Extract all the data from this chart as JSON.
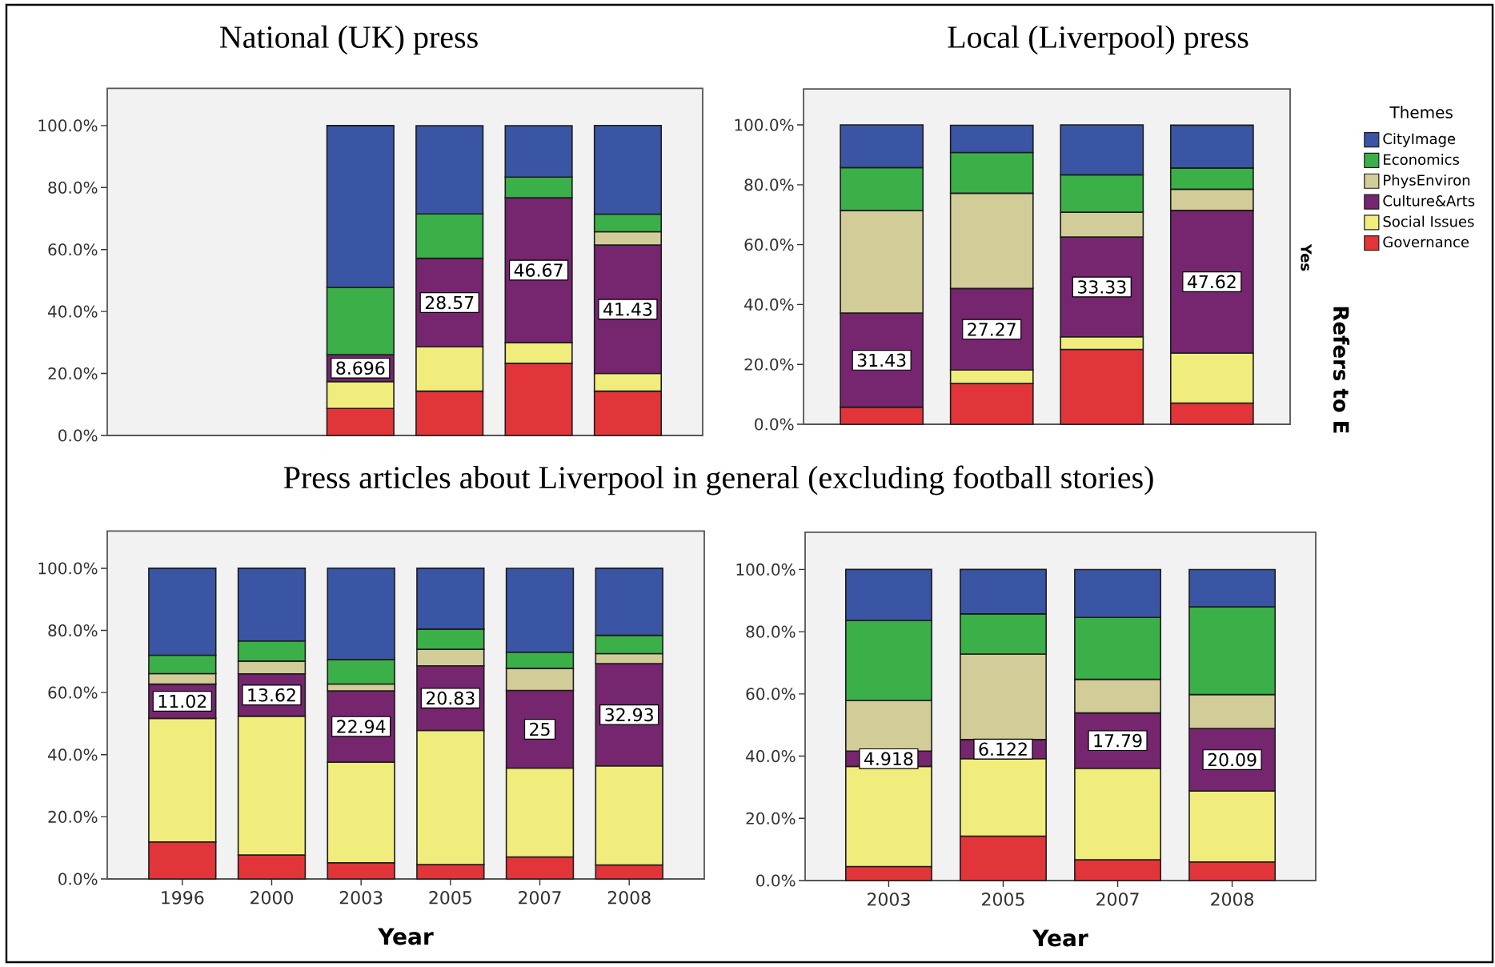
{
  "chart_data": [
    {
      "type": "bar",
      "stacked": true,
      "title": "National (UK) press",
      "categories": [
        "1996",
        "2000",
        "2003",
        "2005",
        "2007",
        "2008"
      ],
      "tick_labels": "y",
      "ylim": [
        0,
        112
      ],
      "yticks": [
        {
          "value": 0,
          "label": "0.0%"
        },
        {
          "value": 20,
          "label": "20.0%"
        },
        {
          "value": 40,
          "label": "40.0%"
        },
        {
          "value": 60,
          "label": "60.0%"
        },
        {
          "value": 80,
          "label": "80.0%"
        },
        {
          "value": 100,
          "label": "100.0%"
        }
      ],
      "series": [
        {
          "color": "#e2353a",
          "values": [
            null,
            null,
            8.7,
            14.3,
            23.3,
            14.3
          ]
        },
        {
          "color": "#f1ed7d",
          "values": [
            null,
            null,
            8.7,
            14.3,
            6.7,
            5.7
          ]
        },
        {
          "color": "#76256f",
          "values": [
            null,
            null,
            8.696,
            28.57,
            46.67,
            41.43
          ],
          "value_labels": [
            null,
            null,
            "8.696",
            "28.57",
            "46.67",
            "41.43"
          ]
        },
        {
          "color": "#d2cc98",
          "values": [
            null,
            null,
            0,
            0,
            0,
            4.3
          ]
        },
        {
          "color": "#3bb049",
          "values": [
            null,
            null,
            21.7,
            14.3,
            6.7,
            5.7
          ]
        },
        {
          "color": "#3a55a3",
          "values": [
            null,
            null,
            52.2,
            28.5,
            16.6,
            28.6
          ]
        }
      ]
    },
    {
      "type": "bar",
      "stacked": true,
      "title": "Local (Liverpool) press",
      "categories": [
        "2003",
        "2005",
        "2007",
        "2008"
      ],
      "tick_labels": "y",
      "ylim": [
        0,
        112
      ],
      "yticks": [
        {
          "value": 0,
          "label": "0.0%"
        },
        {
          "value": 20,
          "label": "20.0%"
        },
        {
          "value": 40,
          "label": "40.0%"
        },
        {
          "value": 60,
          "label": "60.0%"
        },
        {
          "value": 80,
          "label": "80.0%"
        },
        {
          "value": 100,
          "label": "100.0%"
        }
      ],
      "legend": "top right",
      "legend_title": "Themes",
      "annotations": [
        "Yes",
        "Refers to E"
      ],
      "series": [
        {
          "name": "Governance",
          "color": "#e2353a",
          "values": [
            5.7,
            13.6,
            25.0,
            7.1
          ]
        },
        {
          "name": "Social Issues",
          "color": "#f1ed7d",
          "values": [
            0,
            4.5,
            4.2,
            16.7
          ]
        },
        {
          "name": "Culture&Arts",
          "color": "#76256f",
          "values": [
            31.43,
            27.27,
            33.33,
            47.62
          ],
          "value_labels": [
            "31.43",
            "27.27",
            "33.33",
            "47.62"
          ]
        },
        {
          "name": "PhysEnviron",
          "color": "#d2cc98",
          "values": [
            34.3,
            31.8,
            8.3,
            7.1
          ]
        },
        {
          "name": "Economics",
          "color": "#3bb049",
          "values": [
            14.3,
            13.6,
            12.5,
            7.1
          ]
        },
        {
          "name": "CityImage",
          "color": "#3a55a3",
          "values": [
            14.3,
            9.1,
            16.7,
            14.3
          ]
        }
      ]
    },
    {
      "type": "bar",
      "stacked": true,
      "title": "Press articles about Liverpool in general (excluding football stories)",
      "xlabel": "Year",
      "categories": [
        "1996",
        "2000",
        "2003",
        "2005",
        "2007",
        "2008"
      ],
      "ylim": [
        0,
        112
      ],
      "yticks": [
        {
          "value": 0,
          "label": "0.0%"
        },
        {
          "value": 20,
          "label": "20.0%"
        },
        {
          "value": 40,
          "label": "40.0%"
        },
        {
          "value": 60,
          "label": "60.0%"
        },
        {
          "value": 80,
          "label": "80.0%"
        },
        {
          "value": 100,
          "label": "100.0%"
        }
      ],
      "series": [
        {
          "color": "#e2353a",
          "values": [
            11.9,
            7.7,
            5.2,
            4.6,
            7.1,
            4.5
          ]
        },
        {
          "color": "#f1ed7d",
          "values": [
            39.8,
            44.7,
            32.4,
            43.2,
            28.6,
            31.9
          ]
        },
        {
          "color": "#76256f",
          "values": [
            11.02,
            13.62,
            22.94,
            20.83,
            25,
            32.93
          ],
          "value_labels": [
            "11.02",
            "13.62",
            "22.94",
            "20.83",
            "25",
            "32.93"
          ]
        },
        {
          "color": "#d2cc98",
          "values": [
            3.4,
            4.1,
            2.2,
            5.3,
            7.1,
            3.2
          ]
        },
        {
          "color": "#3bb049",
          "values": [
            5.9,
            6.5,
            7.9,
            6.5,
            5.2,
            5.9
          ]
        },
        {
          "color": "#3a55a3",
          "values": [
            28.0,
            23.4,
            29.4,
            19.6,
            27.0,
            21.6
          ]
        }
      ]
    },
    {
      "type": "bar",
      "stacked": true,
      "xlabel": "Year",
      "categories": [
        "2003",
        "2005",
        "2007",
        "2008"
      ],
      "ylim": [
        0,
        112
      ],
      "yticks": [
        {
          "value": 0,
          "label": "0.0%"
        },
        {
          "value": 20,
          "label": "20.0%"
        },
        {
          "value": 40,
          "label": "40.0%"
        },
        {
          "value": 60,
          "label": "60.0%"
        },
        {
          "value": 80,
          "label": "80.0%"
        },
        {
          "value": 100,
          "label": "100.0%"
        }
      ],
      "series": [
        {
          "color": "#e2353a",
          "values": [
            4.5,
            14.3,
            6.7,
            6.0
          ]
        },
        {
          "color": "#f1ed7d",
          "values": [
            32.2,
            24.9,
            29.4,
            22.8
          ]
        },
        {
          "color": "#76256f",
          "values": [
            4.918,
            6.122,
            17.79,
            20.09
          ],
          "value_labels": [
            "4.918",
            "6.122",
            "17.79",
            "20.09"
          ]
        },
        {
          "color": "#d2cc98",
          "values": [
            16.3,
            27.5,
            10.8,
            10.9
          ]
        },
        {
          "color": "#3bb049",
          "values": [
            25.7,
            12.9,
            19.9,
            28.2
          ]
        },
        {
          "color": "#3a55a3",
          "values": [
            16.4,
            14.3,
            15.4,
            12.0
          ]
        }
      ]
    }
  ]
}
